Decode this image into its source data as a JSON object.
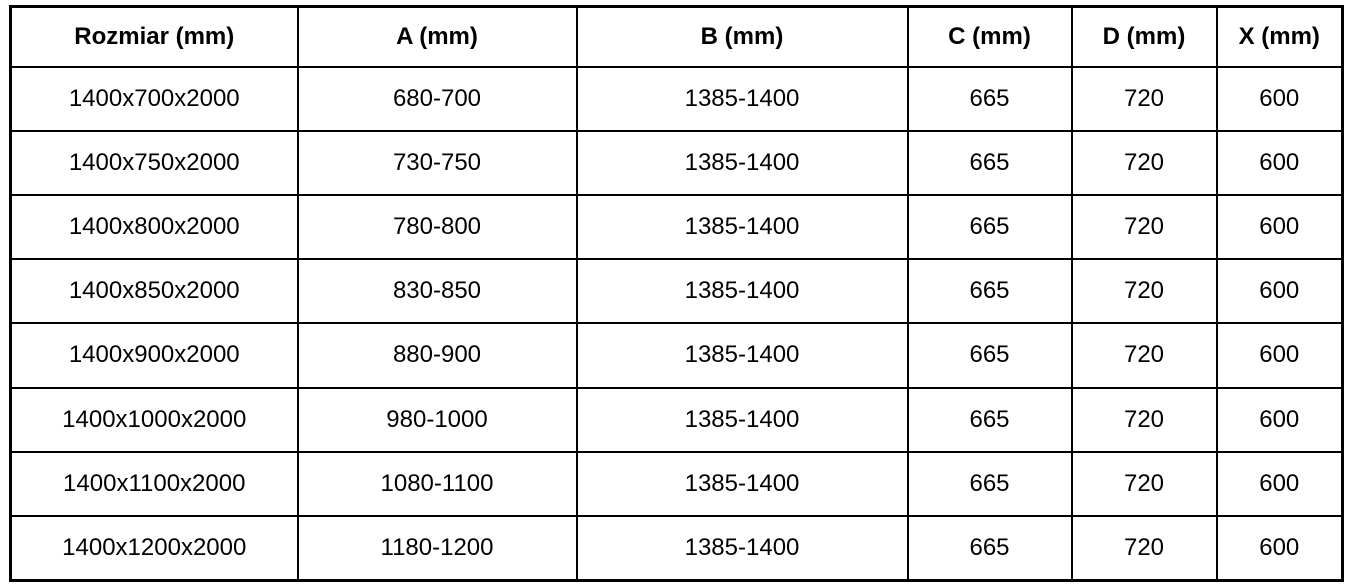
{
  "table": {
    "title": "shower-enclosure-dimensions",
    "headers": [
      "Rozmiar (mm)",
      "A (mm)",
      "B (mm)",
      "C (mm)",
      "D (mm)",
      "X (mm)"
    ],
    "rows": [
      [
        "1400x700x2000",
        "680-700",
        "1385-1400",
        "665",
        "720",
        "600"
      ],
      [
        "1400x750x2000",
        "730-750",
        "1385-1400",
        "665",
        "720",
        "600"
      ],
      [
        "1400x800x2000",
        "780-800",
        "1385-1400",
        "665",
        "720",
        "600"
      ],
      [
        "1400x850x2000",
        "830-850",
        "1385-1400",
        "665",
        "720",
        "600"
      ],
      [
        "1400x900x2000",
        "880-900",
        "1385-1400",
        "665",
        "720",
        "600"
      ],
      [
        "1400x1000x2000",
        "980-1000",
        "1385-1400",
        "665",
        "720",
        "600"
      ],
      [
        "1400x1100x2000",
        "1080-1100",
        "1385-1400",
        "665",
        "720",
        "600"
      ],
      [
        "1400x1200x2000",
        "1180-1200",
        "1385-1400",
        "665",
        "720",
        "600"
      ]
    ],
    "colors": {
      "border": "#000000",
      "text": "#000000",
      "background": "#ffffff"
    }
  }
}
